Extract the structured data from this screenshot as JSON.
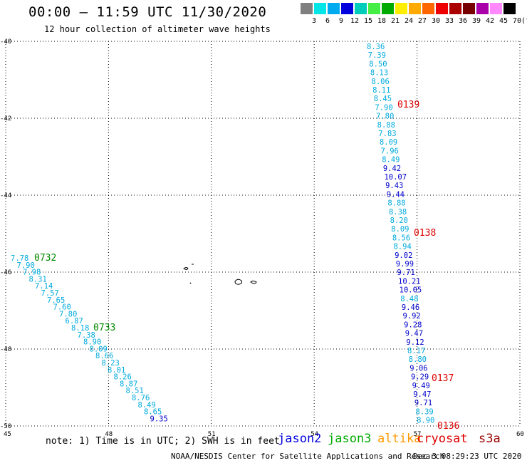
{
  "header": {
    "title": "00:00 – 11:59 UTC 11/30/2020",
    "subtitle": "12 hour collection of altimeter wave heights"
  },
  "legend": {
    "colors": [
      "#808080",
      "#00e6e6",
      "#00aaee",
      "#0000dd",
      "#00ccbb",
      "#44ee44",
      "#00aa00",
      "#ffee00",
      "#ffaa00",
      "#ff6600",
      "#ee0000",
      "#aa0000",
      "#770000",
      "#aa00aa",
      "#ff88ff",
      "#000000"
    ],
    "labels": [
      "3",
      "6",
      "9",
      "12",
      "15",
      "18",
      "21",
      "24",
      "27",
      "30",
      "33",
      "36",
      "39",
      "42",
      "45",
      "70"
    ],
    "unit": "(ft)"
  },
  "map": {
    "x_ticks": [
      "45",
      "48",
      "51",
      "54",
      "57",
      "60"
    ],
    "y_ticks": [
      "-40",
      "-42",
      "-44",
      "-46",
      "-48",
      "-50"
    ]
  },
  "tracks": {
    "cryosat_east": {
      "values": [
        "8.36",
        "7.39",
        "8.50",
        "8.13",
        "8.06",
        "8.11",
        "8.45",
        "7.90",
        "7.80",
        "8.88",
        "7.83",
        "8.09",
        "7.96",
        "8.49",
        "9.42",
        "10.07",
        "9.43",
        "9.44",
        "8.88",
        "8.38",
        "8.20",
        "8.09",
        "8.56",
        "8.94",
        "9.02",
        "9.99",
        "9.71",
        "10.21",
        "10.05",
        "8.48",
        "9.46",
        "9.92",
        "9.28",
        "9.47",
        "9.12",
        "8.17",
        "8.80",
        "9.06",
        "9.29",
        "9.49",
        "9.47",
        "9.71",
        "8.39",
        "8.90"
      ],
      "times": [
        "0139",
        "0138",
        "0137",
        "0136"
      ]
    },
    "jason3_west": {
      "values": [
        "7.78",
        "7.90",
        "7.98",
        "8.31",
        "7.14",
        "7.57",
        "7.65",
        "7.60",
        "7.80",
        "6.87",
        "8.18",
        "7.38",
        "8.90",
        "8.09",
        "8.66",
        "8.23",
        "8.01",
        "8.26",
        "8.87",
        "8.51",
        "8.76",
        "8.49",
        "8.65",
        "9.35"
      ],
      "times": [
        "0732",
        "0733"
      ]
    }
  },
  "note": "note:  1) Time is in UTC;  2) SWH is in feet",
  "satellites": [
    "jason2",
    "jason3",
    "altika",
    "cryosat",
    "s3a"
  ],
  "satellite_colors": [
    "#0000dd",
    "#00aa00",
    "#ff9900",
    "#dd0000",
    "#990000"
  ],
  "footer": {
    "credit": "NOAA/NESDIS Center for Satellite Applications and Research",
    "timestamp": "Dec  3 08:29:23 UTC 2020"
  }
}
